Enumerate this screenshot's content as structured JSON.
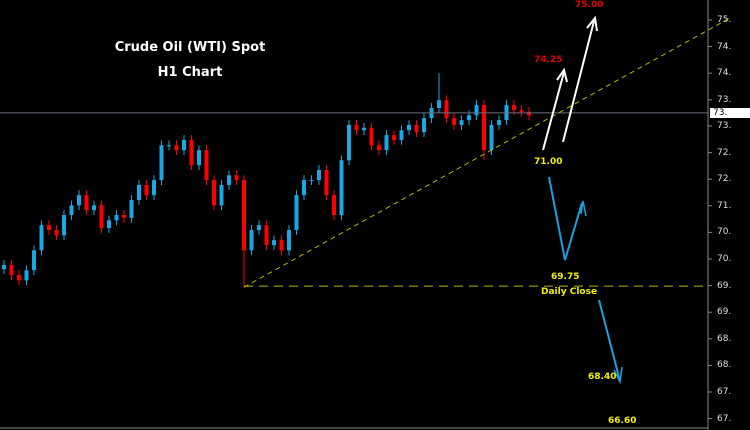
{
  "chart_data": {
    "type": "candlestick",
    "title": "Crude Oil (WTI) Spot",
    "subtitle": "H1 Chart",
    "ylim": [
      66.88,
      75.76
    ],
    "y_tick_labels": [
      "75.",
      "74.",
      "74.",
      "73.",
      "73.",
      "72.",
      "72.",
      "71.",
      "70.",
      "70.",
      "69.",
      "69.",
      "68.",
      "68.",
      "67.",
      "67."
    ],
    "current_price": 73.43,
    "current_price_label": "73.",
    "grid": false,
    "colors": {
      "up": "#19a8e6",
      "down": "#ff0000",
      "background": "#000000",
      "trendline": "#b5b500",
      "current_line": "#6a7080"
    },
    "open": [
      70.2,
      70.29,
      70.08,
      69.97,
      70.18,
      70.59,
      71.11,
      71.01,
      70.9,
      71.32,
      71.52,
      71.73,
      71.42,
      71.52,
      71.05,
      71.21,
      71.32,
      71.26,
      71.63,
      71.94,
      71.73,
      72.04,
      72.76,
      72.76,
      72.66,
      72.87,
      72.35,
      72.66,
      72.04,
      71.52,
      71.94,
      72.14,
      72.04,
      70.59,
      71.01,
      71.11,
      70.7,
      70.8,
      70.59,
      71.01,
      71.73,
      72.04,
      72.04,
      72.25,
      71.73,
      71.32,
      72.45,
      73.18,
      73.07,
      73.12,
      72.76,
      72.66,
      72.97,
      72.87,
      73.07,
      73.18,
      73.03,
      73.32,
      73.53,
      73.69,
      73.32,
      73.18,
      73.28,
      73.38,
      73.59,
      72.66,
      73.18,
      73.28,
      73.59,
      73.49,
      73.45
    ],
    "high": [
      70.39,
      70.39,
      70.18,
      70.28,
      70.69,
      71.21,
      71.21,
      71.11,
      71.42,
      71.62,
      71.83,
      71.83,
      71.62,
      71.62,
      71.31,
      71.42,
      71.42,
      71.73,
      72.04,
      72.04,
      72.14,
      72.86,
      72.86,
      72.86,
      72.97,
      72.97,
      72.76,
      72.76,
      72.14,
      72.04,
      72.24,
      72.24,
      72.14,
      71.11,
      71.21,
      71.21,
      70.9,
      70.9,
      71.11,
      71.83,
      72.14,
      72.14,
      72.35,
      72.35,
      71.83,
      72.55,
      73.28,
      73.28,
      73.22,
      73.22,
      72.86,
      73.07,
      73.07,
      73.17,
      73.28,
      73.28,
      73.42,
      73.63,
      74.25,
      73.79,
      73.42,
      73.38,
      73.48,
      73.69,
      73.69,
      73.28,
      73.38,
      73.69,
      73.69,
      73.59,
      73.55
    ],
    "low": [
      70.1,
      69.98,
      69.87,
      69.87,
      70.08,
      70.49,
      70.91,
      70.8,
      70.8,
      71.22,
      71.42,
      71.32,
      71.32,
      70.95,
      70.95,
      71.11,
      71.16,
      71.16,
      71.53,
      71.63,
      71.63,
      71.94,
      72.66,
      72.56,
      72.56,
      72.25,
      72.25,
      71.94,
      71.42,
      71.42,
      71.84,
      71.94,
      69.83,
      70.49,
      70.91,
      70.6,
      70.6,
      70.49,
      70.49,
      70.91,
      71.63,
      71.94,
      71.94,
      71.63,
      71.22,
      71.22,
      72.35,
      72.97,
      72.97,
      72.66,
      72.56,
      72.56,
      72.77,
      72.77,
      72.97,
      72.93,
      72.93,
      73.22,
      73.43,
      73.22,
      73.08,
      73.08,
      73.18,
      73.28,
      72.46,
      72.56,
      73.08,
      73.18,
      73.39,
      73.35,
      73.28
    ],
    "close": [
      70.29,
      70.08,
      69.97,
      70.18,
      70.59,
      71.11,
      71.01,
      70.9,
      71.32,
      71.52,
      71.73,
      71.42,
      71.52,
      71.05,
      71.21,
      71.32,
      71.26,
      71.63,
      71.94,
      71.73,
      72.04,
      72.76,
      72.76,
      72.66,
      72.87,
      72.35,
      72.66,
      72.04,
      71.52,
      71.94,
      72.14,
      72.04,
      70.59,
      71.01,
      71.11,
      70.7,
      70.8,
      70.59,
      71.01,
      71.73,
      72.04,
      72.04,
      72.25,
      71.73,
      71.32,
      72.45,
      73.18,
      73.07,
      73.12,
      72.76,
      72.66,
      72.97,
      72.87,
      73.07,
      73.18,
      73.03,
      73.32,
      73.53,
      73.69,
      73.32,
      73.18,
      73.28,
      73.38,
      73.59,
      72.66,
      73.18,
      73.28,
      73.59,
      73.49,
      73.45,
      73.38
    ],
    "trendline": {
      "from_price": 69.83,
      "to_price": 75.39
    },
    "daily_close": 69.85,
    "annotations": {
      "t75": "75.00",
      "t7425": "74.25",
      "t71": "71.00",
      "t6975": "69.75",
      "daily_close": "Daily Close",
      "t6840": "68.40",
      "t6660": "66.60"
    },
    "annotation_colors": {
      "bull_target": "#e00000",
      "level": "#f0f000",
      "bull_arrow": "#ffffff",
      "bear_arrow": "#1aa0e0"
    }
  }
}
